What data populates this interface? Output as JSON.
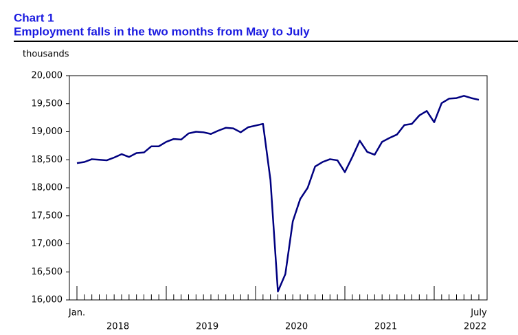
{
  "chart_data": {
    "type": "line",
    "title": "Chart 1",
    "subtitle": "Employment falls in the two months from May to July",
    "y_label": "thousands",
    "categories": [
      "Jan.",
      null,
      null,
      null,
      null,
      null,
      null,
      null,
      null,
      null,
      null,
      null,
      null,
      null,
      null,
      null,
      null,
      null,
      null,
      null,
      null,
      null,
      null,
      null,
      null,
      null,
      null,
      null,
      null,
      null,
      null,
      null,
      null,
      null,
      null,
      null,
      null,
      null,
      null,
      null,
      null,
      null,
      null,
      null,
      null,
      null,
      null,
      null,
      null,
      null,
      null,
      null,
      null,
      null,
      "July"
    ],
    "year_labels": [
      "2018",
      "2019",
      "2020",
      "2021",
      "2022"
    ],
    "series": [
      {
        "name": "Employment",
        "color": "#000080",
        "values": [
          18440,
          18460,
          18510,
          18500,
          18490,
          18540,
          18600,
          18550,
          18620,
          18630,
          18740,
          18740,
          18820,
          18870,
          18860,
          18970,
          19000,
          18990,
          18960,
          19020,
          19070,
          19060,
          18990,
          19080,
          19110,
          19140,
          18140,
          16150,
          16460,
          17400,
          17800,
          18000,
          18380,
          18460,
          18510,
          18490,
          18280,
          18550,
          18840,
          18640,
          18590,
          18820,
          18890,
          18950,
          19120,
          19140,
          19290,
          19370,
          19170,
          19510,
          19590,
          19600,
          19640,
          19600,
          19570
        ]
      }
    ],
    "ylim": [
      16000,
      20000
    ],
    "yticks": [
      {
        "value": 16000,
        "label": "16,000"
      },
      {
        "value": 16500,
        "label": "16,500"
      },
      {
        "value": 17000,
        "label": "17,000"
      },
      {
        "value": 17500,
        "label": "17,500"
      },
      {
        "value": 18000,
        "label": "18,000"
      },
      {
        "value": 18500,
        "label": "18,500"
      },
      {
        "value": 19000,
        "label": "19,000"
      },
      {
        "value": 19500,
        "label": "19,500"
      },
      {
        "value": 20000,
        "label": "20,000"
      }
    ]
  }
}
